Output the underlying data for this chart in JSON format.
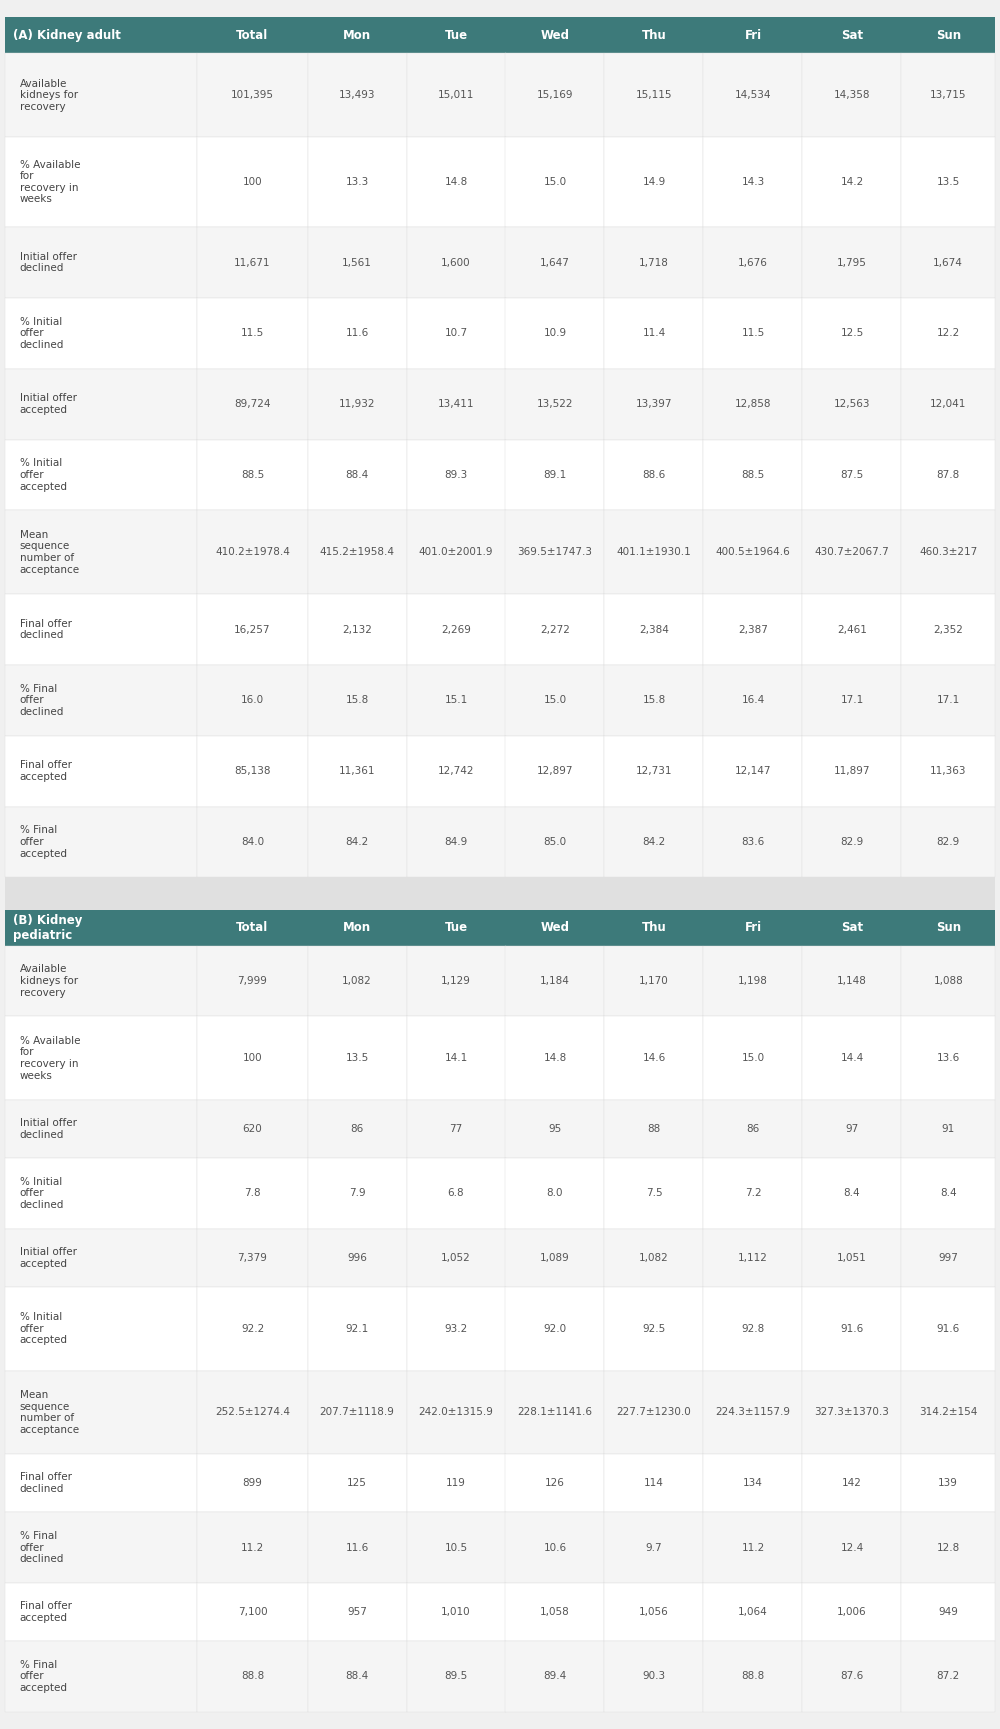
{
  "header_bg": "#3d7a7a",
  "header_text_color": "#ffffff",
  "row_bg_light": "#f5f5f5",
  "row_bg_white": "#ffffff",
  "section_gap_color": "#e8e8e8",
  "text_color": "#555555",
  "label_color": "#444444",
  "header_row": [
    "(A) Kidney adult",
    "Total",
    "Mon",
    "Tue",
    "Wed",
    "Thu",
    "Fri",
    "Sat",
    "Sun"
  ],
  "section_A_rows": [
    {
      "label": "Available\nkidneys for\nrecovery",
      "values": [
        "101,395",
        "13,493",
        "15,011",
        "15,169",
        "15,115",
        "14,534",
        "14,358",
        "13,715"
      ]
    },
    {
      "label": "% Available\nfor\nrecovery in\nweeks",
      "values": [
        "100",
        "13.3",
        "14.8",
        "15.0",
        "14.9",
        "14.3",
        "14.2",
        "13.5"
      ]
    },
    {
      "label": "Initial offer\ndeclined",
      "values": [
        "11,671",
        "1,561",
        "1,600",
        "1,647",
        "1,718",
        "1,676",
        "1,795",
        "1,674"
      ]
    },
    {
      "label": "% Initial\noffer\ndeclined",
      "values": [
        "11.5",
        "11.6",
        "10.7",
        "10.9",
        "11.4",
        "11.5",
        "12.5",
        "12.2"
      ]
    },
    {
      "label": "Initial offer\naccepted",
      "values": [
        "89,724",
        "11,932",
        "13,411",
        "13,522",
        "13,397",
        "12,858",
        "12,563",
        "12,041"
      ]
    },
    {
      "label": "% Initial\noffer\naccepted",
      "values": [
        "88.5",
        "88.4",
        "89.3",
        "89.1",
        "88.6",
        "88.5",
        "87.5",
        "87.8"
      ]
    },
    {
      "label": "Mean\nsequence\nnumber of\nacceptance",
      "values": [
        "410.2±1978.4",
        "415.2±1958.4",
        "401.0±2001.9",
        "369.5±1747.3",
        "401.1±1930.1",
        "400.5±1964.6",
        "430.7±2067.7",
        "460.3±217"
      ]
    },
    {
      "label": "Final offer\ndeclined",
      "values": [
        "16,257",
        "2,132",
        "2,269",
        "2,272",
        "2,384",
        "2,387",
        "2,461",
        "2,352"
      ]
    },
    {
      "label": "% Final\noffer\ndeclined",
      "values": [
        "16.0",
        "15.8",
        "15.1",
        "15.0",
        "15.8",
        "16.4",
        "17.1",
        "17.1"
      ]
    },
    {
      "label": "Final offer\naccepted",
      "values": [
        "85,138",
        "11,361",
        "12,742",
        "12,897",
        "12,731",
        "12,147",
        "11,897",
        "11,363"
      ]
    },
    {
      "label": "% Final\noffer\naccepted",
      "values": [
        "84.0",
        "84.2",
        "84.9",
        "85.0",
        "84.2",
        "83.6",
        "82.9",
        "82.9"
      ]
    }
  ],
  "header_row_B": [
    "",
    "Total",
    "Mon",
    "Tue",
    "Wed",
    "Thu",
    "Fri",
    "Sat",
    "Sun"
  ],
  "section_B_label": ") ",
  "section_B_rows": [
    {
      "label": "Available\nkidneys for\nrecovery",
      "values": [
        "7,999",
        "1,082",
        "1,129",
        "1,184",
        "1,170",
        "1,198",
        "1,148",
        "1,088"
      ]
    },
    {
      "label": "% Available\nfor\nrecovery in\nweeks",
      "values": [
        "100",
        "13.5",
        "14.1",
        "14.8",
        "14.6",
        "15.0",
        "14.4",
        "13.6"
      ]
    },
    {
      "label": "Initial offer\ndeclined",
      "values": [
        "620",
        "86",
        "77",
        "95",
        "88",
        "86",
        "97",
        "91"
      ]
    },
    {
      "label": "% Initial\noffer\ndeclined",
      "values": [
        "7.8",
        "7.9",
        "6.8",
        "8.0",
        "7.5",
        "7.2",
        "8.4",
        "8.4"
      ]
    },
    {
      "label": "Initial offer\naccepted",
      "values": [
        "7,379",
        "996",
        "1,052",
        "1,089",
        "1,082",
        "1,112",
        "1,051",
        "997"
      ]
    },
    {
      "label": "% Initial\noffer\naccepted",
      "values": [
        "92.2",
        "92.1",
        "93.2",
        "92.0",
        "92.5",
        "92.8",
        "91.6",
        "91.6"
      ]
    },
    {
      "label": "Mean\nsequence\nnumber of\nacceptance",
      "values": [
        "252.5±1274.4",
        "207.7±1118.9",
        "242.0±1315.9",
        "228.1±1141.6",
        "227.7±1230.0",
        "224.3±1157.9",
        "327.3±1370.3",
        "314.2±154"
      ]
    },
    {
      "label": "Final offer\ndeclined",
      "values": [
        "899",
        "125",
        "119",
        "126",
        "114",
        "134",
        "142",
        "139"
      ]
    },
    {
      "label": "% Final\noffer\ndeclined",
      "values": [
        "11.2",
        "11.6",
        "10.5",
        "10.6",
        "9.7",
        "11.2",
        "12.4",
        "12.8"
      ]
    },
    {
      "label": "Final offer\naccepted",
      "values": [
        "7,100",
        "957",
        "1,010",
        "1,058",
        "1,056",
        "1,064",
        "1,006",
        "949"
      ]
    },
    {
      "label": "% Final\noffer\naccepted",
      "values": [
        "88.8",
        "88.4",
        "89.5",
        "89.4",
        "90.3",
        "88.8",
        "87.6",
        "87.2"
      ]
    }
  ]
}
